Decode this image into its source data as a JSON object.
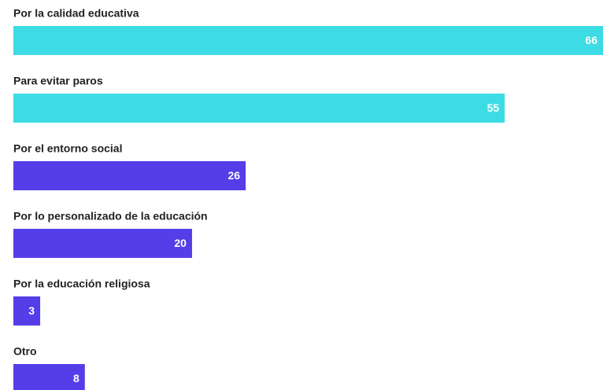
{
  "chart_data": {
    "type": "bar",
    "orientation": "horizontal",
    "categories": [
      "Por la calidad educativa",
      "Para evitar paros",
      "Por el entorno social",
      "Por lo personalizado de la educación",
      "Por la educación religiosa",
      "Otro"
    ],
    "values": [
      66,
      55,
      26,
      20,
      3,
      8
    ],
    "colors": [
      "#3ddce4",
      "#3ddce4",
      "#553ee8",
      "#553ee8",
      "#553ee8",
      "#553ee8"
    ]
  }
}
